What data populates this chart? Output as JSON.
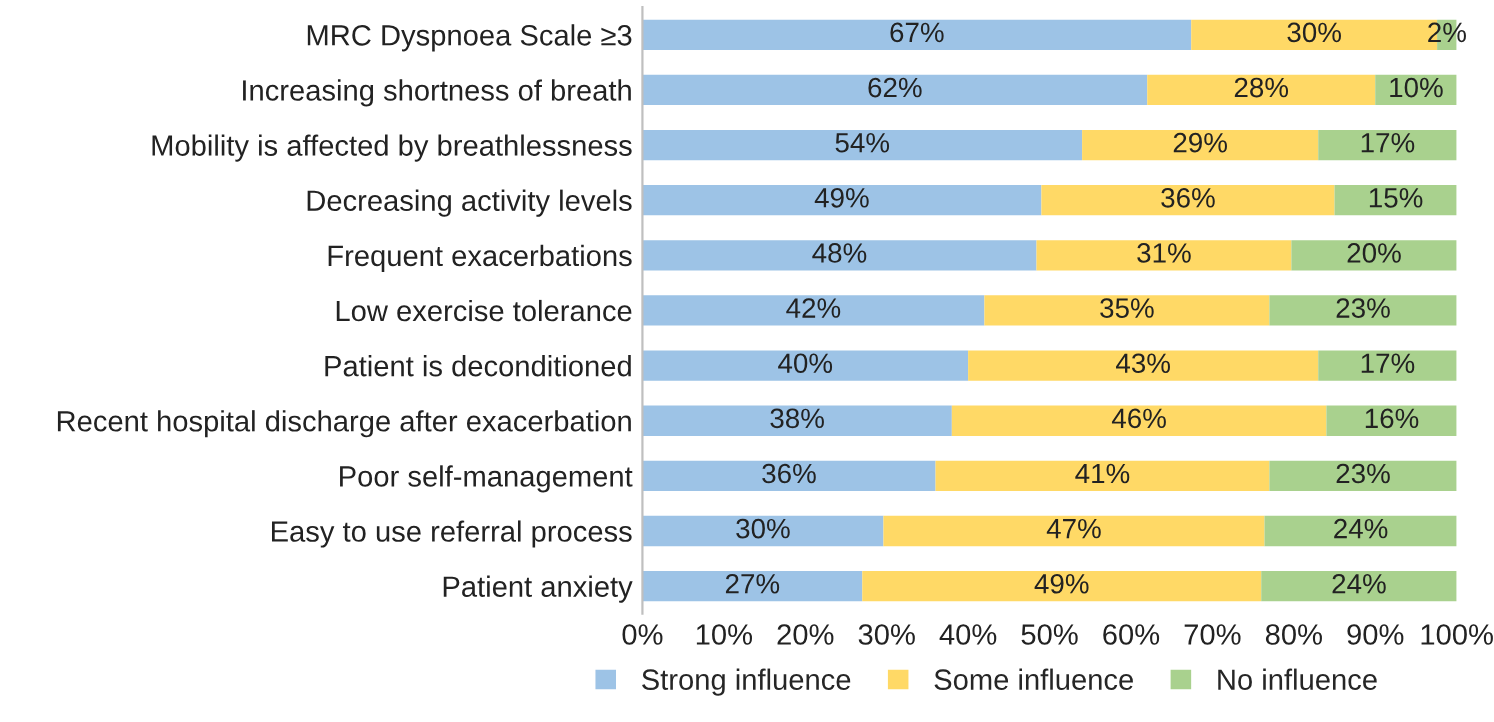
{
  "chart_data": {
    "type": "bar",
    "orientation": "horizontal",
    "stacked": true,
    "legend": "bottom",
    "grid": false,
    "categories": [
      "MRC Dyspnoea Scale ≥3",
      "Increasing shortness of breath",
      "Mobility is affected by breathlessness",
      "Decreasing activity levels",
      "Frequent exacerbations",
      "Low exercise tolerance",
      "Patient is deconditioned",
      "Recent hospital discharge after exacerbation",
      "Poor self-management",
      "Easy to use referral process",
      "Patient anxiety"
    ],
    "series": [
      {
        "name": "Strong influence",
        "color": "#9dc3e6",
        "values": [
          67.4,
          62,
          54,
          49,
          48.4,
          42,
          40,
          38,
          36,
          29.6,
          27
        ],
        "value_labels": [
          "67%",
          "62%",
          "54%",
          "49%",
          "48%",
          "42%",
          "40%",
          "38%",
          "36%",
          "30%",
          "27%"
        ]
      },
      {
        "name": "Some influence",
        "color": "#ffd966",
        "values": [
          30.2,
          28,
          29,
          36,
          31.3,
          35,
          43,
          46,
          41,
          46.8,
          49
        ],
        "value_labels": [
          "30%",
          "28%",
          "29%",
          "36%",
          "31%",
          "35%",
          "43%",
          "46%",
          "41%",
          "47%",
          "49%"
        ]
      },
      {
        "name": "No influence",
        "color": "#a9d18e",
        "values": [
          2.4,
          10,
          17,
          15,
          20.3,
          23,
          17,
          16,
          23,
          23.6,
          24
        ],
        "value_labels": [
          "2%",
          "10%",
          "17%",
          "15%",
          "20%",
          "23%",
          "17%",
          "16%",
          "23%",
          "24%",
          "24%"
        ]
      }
    ],
    "xlim": [
      0,
      100
    ],
    "xticks": [
      {
        "value": 0,
        "label": "0%"
      },
      {
        "value": 10,
        "label": "10%"
      },
      {
        "value": 20,
        "label": "20%"
      },
      {
        "value": 30,
        "label": "30%"
      },
      {
        "value": 40,
        "label": "40%"
      },
      {
        "value": 50,
        "label": "50%"
      },
      {
        "value": 60,
        "label": "60%"
      },
      {
        "value": 70,
        "label": "70%"
      },
      {
        "value": 80,
        "label": "80%"
      },
      {
        "value": 90,
        "label": "90%"
      },
      {
        "value": 100,
        "label": "100%"
      }
    ]
  }
}
